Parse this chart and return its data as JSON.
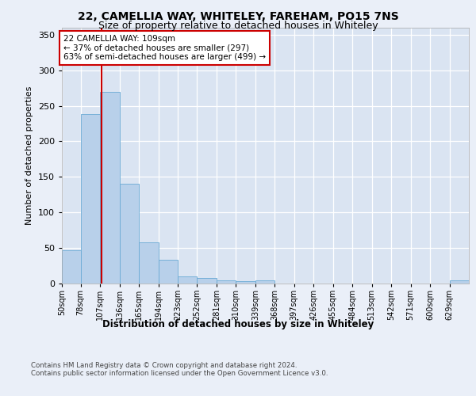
{
  "title1": "22, CAMELLIA WAY, WHITELEY, FAREHAM, PO15 7NS",
  "title2": "Size of property relative to detached houses in Whiteley",
  "xlabel": "Distribution of detached houses by size in Whiteley",
  "ylabel": "Number of detached properties",
  "footer1": "Contains HM Land Registry data © Crown copyright and database right 2024.",
  "footer2": "Contains public sector information licensed under the Open Government Licence v3.0.",
  "annotation_title": "22 CAMELLIA WAY: 109sqm",
  "annotation_line1": "← 37% of detached houses are smaller (297)",
  "annotation_line2": "63% of semi-detached houses are larger (499) →",
  "property_size": 109,
  "bar_color": "#b8d0ea",
  "bar_edge_color": "#6aaad4",
  "vline_color": "#cc0000",
  "annotation_box_color": "#ffffff",
  "annotation_box_edge": "#cc0000",
  "background_color": "#eaeff8",
  "plot_bg_color": "#dae4f2",
  "grid_color": "#ffffff",
  "categories": [
    "50sqm",
    "78sqm",
    "107sqm",
    "136sqm",
    "165sqm",
    "194sqm",
    "223sqm",
    "252sqm",
    "281sqm",
    "310sqm",
    "339sqm",
    "368sqm",
    "397sqm",
    "426sqm",
    "455sqm",
    "484sqm",
    "513sqm",
    "542sqm",
    "571sqm",
    "600sqm",
    "629sqm"
  ],
  "values": [
    46,
    238,
    270,
    140,
    58,
    33,
    10,
    7,
    4,
    3,
    4,
    0,
    0,
    0,
    0,
    0,
    0,
    0,
    0,
    0,
    4
  ],
  "bin_edges": [
    50,
    78,
    107,
    136,
    165,
    194,
    223,
    252,
    281,
    310,
    339,
    368,
    397,
    426,
    455,
    484,
    513,
    542,
    571,
    600,
    629,
    658
  ],
  "ylim": [
    0,
    360
  ],
  "yticks": [
    0,
    50,
    100,
    150,
    200,
    250,
    300,
    350
  ]
}
